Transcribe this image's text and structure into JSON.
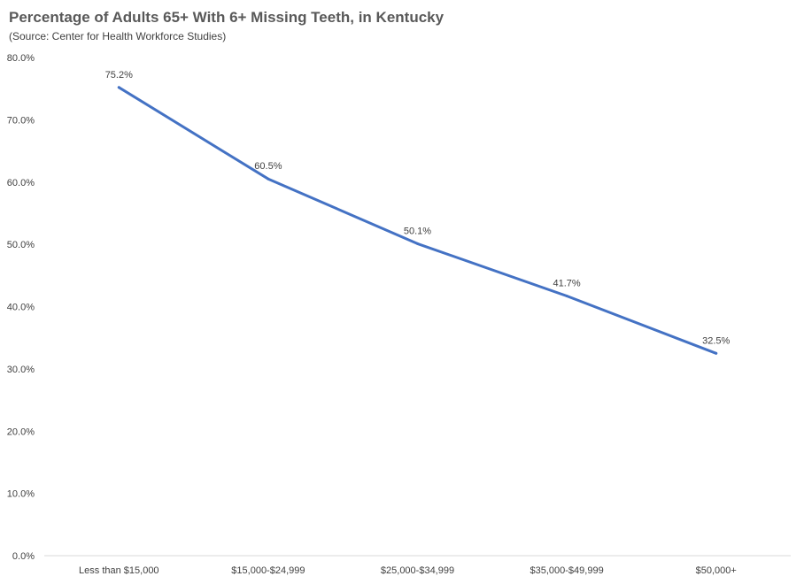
{
  "chart_data": {
    "type": "line",
    "title": "Percentage of Adults 65+ With 6+ Missing Teeth, in Kentucky",
    "subtitle": "(Source: Center for Health Workforce Studies)",
    "xlabel": "",
    "ylabel": "",
    "categories": [
      "Less than $15,000",
      "$15,000-$24,999",
      "$25,000-$34,999",
      "$35,000-$49,999",
      "$50,000+"
    ],
    "series": [
      {
        "values": [
          75.2,
          60.5,
          50.1,
          41.7,
          32.5
        ],
        "data_labels": [
          "75.2%",
          "60.5%",
          "50.1%",
          "41.7%",
          "32.5%"
        ],
        "color": "#4472C4"
      }
    ],
    "ylim": [
      0,
      80
    ],
    "yticks": [
      0,
      10,
      20,
      30,
      40,
      50,
      60,
      70,
      80
    ],
    "ytick_labels": [
      "0.0%",
      "10.0%",
      "20.0%",
      "30.0%",
      "40.0%",
      "50.0%",
      "60.0%",
      "70.0%",
      "80.0%"
    ],
    "grid": false,
    "legend": "none",
    "axis_color": "#D9D9D9"
  }
}
